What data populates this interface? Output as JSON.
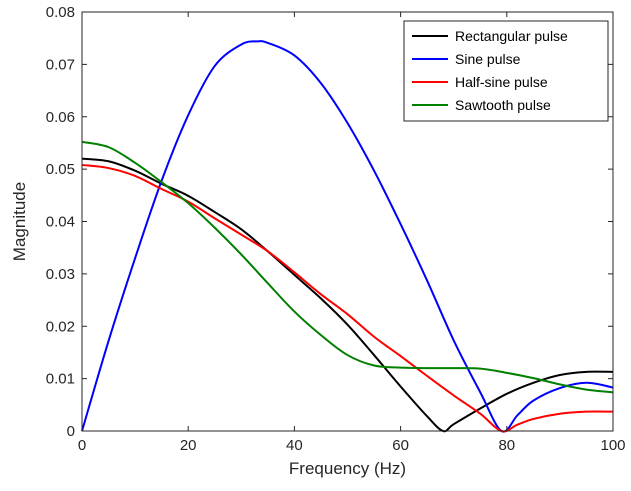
{
  "chart_data": {
    "type": "line",
    "title": "",
    "xlabel": "Frequency (Hz)",
    "ylabel": "Magnitude",
    "xlim": [
      0,
      100
    ],
    "ylim": [
      0,
      0.08
    ],
    "xticks": [
      "0",
      "20",
      "40",
      "60",
      "80",
      "100"
    ],
    "yticks": [
      "0",
      "0.01",
      "0.02",
      "0.03",
      "0.04",
      "0.05",
      "0.06",
      "0.07",
      "0.08"
    ],
    "grid": false,
    "legend": "top-right",
    "series": [
      {
        "name": "Rectangular pulse",
        "color": "#000000",
        "x": [
          0,
          5,
          10,
          15,
          20,
          25,
          30,
          35,
          40,
          45,
          50,
          55,
          60,
          65,
          68,
          70,
          75,
          80,
          85,
          90,
          95,
          100
        ],
        "y": [
          0.052,
          0.0515,
          0.0497,
          0.0472,
          0.0449,
          0.0418,
          0.0385,
          0.0343,
          0.0298,
          0.0253,
          0.0203,
          0.0145,
          0.0085,
          0.0028,
          0,
          0.0013,
          0.0043,
          0.0071,
          0.0092,
          0.0107,
          0.0113,
          0.0113
        ]
      },
      {
        "name": "Sine pulse",
        "color": "#0000ff",
        "x": [
          0,
          5,
          10,
          15,
          20,
          25,
          30,
          33,
          35,
          40,
          45,
          50,
          55,
          60,
          65,
          70,
          75,
          79,
          82,
          85,
          90,
          95,
          100
        ],
        "y": [
          0,
          0.0172,
          0.033,
          0.0478,
          0.0603,
          0.0697,
          0.0738,
          0.0744,
          0.0741,
          0.0717,
          0.0664,
          0.0588,
          0.0497,
          0.0395,
          0.0287,
          0.0173,
          0.0074,
          0,
          0.003,
          0.0058,
          0.0082,
          0.0092,
          0.0083
        ]
      },
      {
        "name": "Half-sine pulse",
        "color": "#ff0000",
        "x": [
          0,
          5,
          10,
          15,
          20,
          25,
          30,
          35,
          40,
          45,
          50,
          55,
          60,
          65,
          70,
          75,
          79,
          82,
          85,
          90,
          95,
          100
        ],
        "y": [
          0.0508,
          0.0502,
          0.0487,
          0.0462,
          0.0438,
          0.0406,
          0.0375,
          0.0343,
          0.0303,
          0.0261,
          0.0223,
          0.018,
          0.0143,
          0.0105,
          0.0068,
          0.0033,
          0,
          0.0012,
          0.0023,
          0.0033,
          0.0037,
          0.0037
        ]
      },
      {
        "name": "Sawtooth pulse",
        "color": "#008000",
        "x": [
          0,
          5,
          10,
          15,
          20,
          25,
          30,
          35,
          40,
          45,
          50,
          55,
          60,
          65,
          70,
          75,
          80,
          85,
          90,
          95,
          100
        ],
        "y": [
          0.0552,
          0.0542,
          0.0512,
          0.0475,
          0.0435,
          0.0388,
          0.0337,
          0.0282,
          0.0228,
          0.0183,
          0.0145,
          0.0125,
          0.0121,
          0.012,
          0.012,
          0.0119,
          0.0111,
          0.0101,
          0.0089,
          0.0079,
          0.0074
        ]
      }
    ]
  }
}
